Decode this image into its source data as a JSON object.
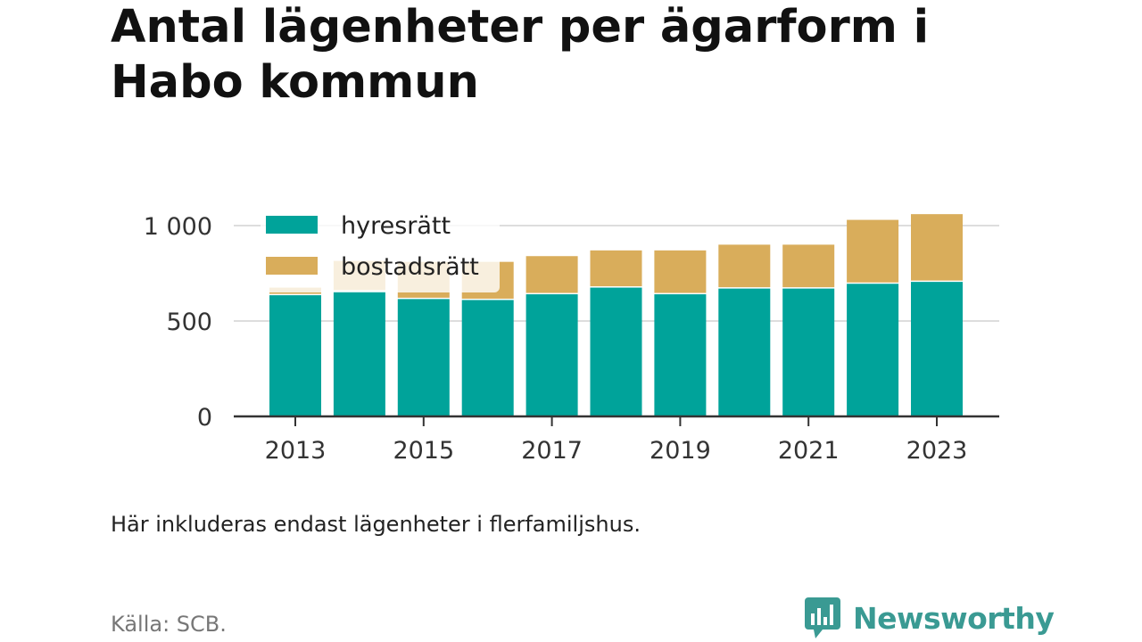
{
  "title": "Antal lägenheter per ägarform i Habo kommun",
  "note": "Här inkluderas endast lägenheter i flerfamiljshus.",
  "source": "Källa: SCB.",
  "brand": {
    "name": "Newsworthy",
    "logo_icon": "bar-chart-speech-bubble-icon",
    "color": "#3a9a93"
  },
  "chart_data": {
    "type": "bar",
    "stacked": true,
    "categories": [
      "2013",
      "2014",
      "2015",
      "2016",
      "2017",
      "2018",
      "2019",
      "2020",
      "2021",
      "2022",
      "2023"
    ],
    "series": [
      {
        "name": "hyresrätt",
        "color": "#00a39a",
        "values": [
          635,
          655,
          615,
          610,
          640,
          675,
          640,
          670,
          670,
          695,
          705
        ]
      },
      {
        "name": "bostadsrätt",
        "color": "#d9ad5b",
        "values": [
          40,
          160,
          195,
          200,
          200,
          195,
          230,
          230,
          230,
          335,
          355
        ]
      }
    ],
    "x_tick_labels": [
      "2013",
      "2015",
      "2017",
      "2019",
      "2021",
      "2023"
    ],
    "y_ticks": [
      0,
      500,
      1000
    ],
    "y_tick_labels": [
      "0",
      "500",
      "1 000"
    ],
    "ylim": [
      0,
      1080
    ],
    "grid": true,
    "legend_position": "top-left"
  }
}
